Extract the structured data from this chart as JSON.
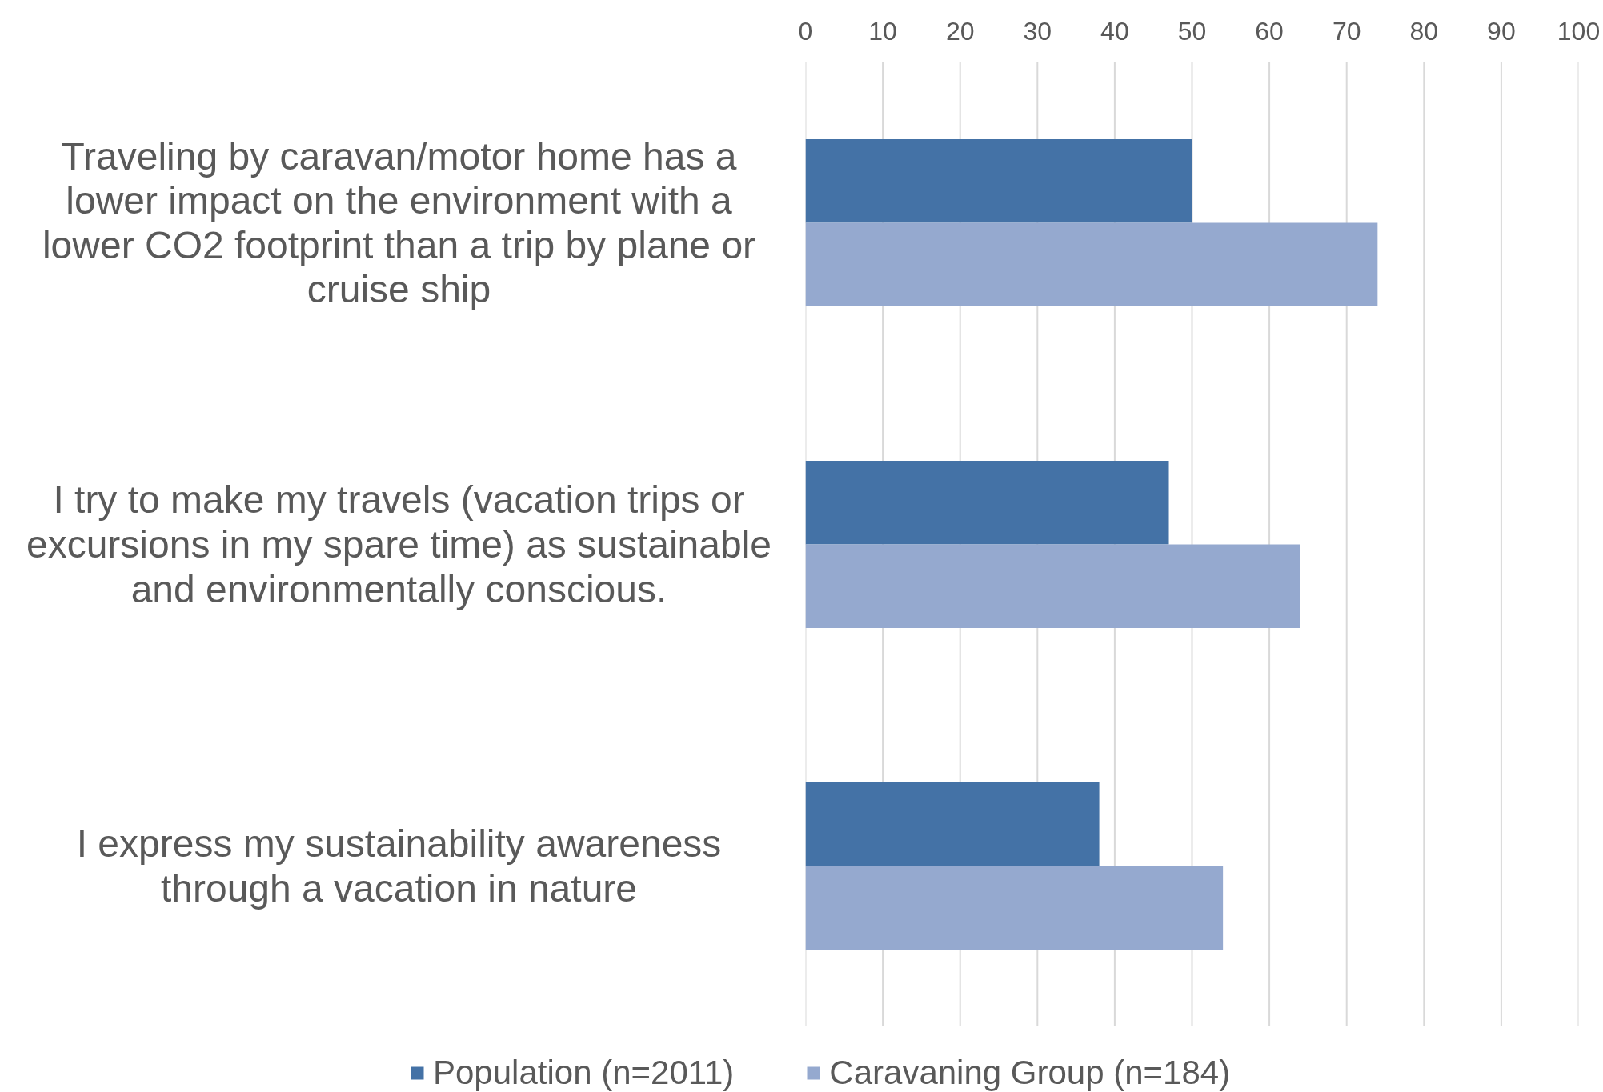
{
  "chart_data": {
    "type": "bar",
    "orientation": "horizontal",
    "categories": [
      "Traveling by caravan/motor home has a lower impact on the environment with a lower CO2 footprint than a trip by plane or cruise ship",
      "I try to make my travels (vacation trips or excursions in my spare time) as sustainable and environmentally conscious.",
      "I express my sustainability awareness through a vacation in nature"
    ],
    "series": [
      {
        "name": "Population (n=2011)",
        "color": "#4472a6",
        "values": [
          50,
          47,
          38
        ]
      },
      {
        "name": "Caravaning Group (n=184)",
        "color": "#95a9cf",
        "values": [
          74,
          64,
          54
        ]
      }
    ],
    "xlim": [
      0,
      100
    ],
    "xticks": [
      0,
      10,
      20,
      30,
      40,
      50,
      60,
      70,
      80,
      90,
      100
    ],
    "grid": "x",
    "legend": "bottom"
  }
}
